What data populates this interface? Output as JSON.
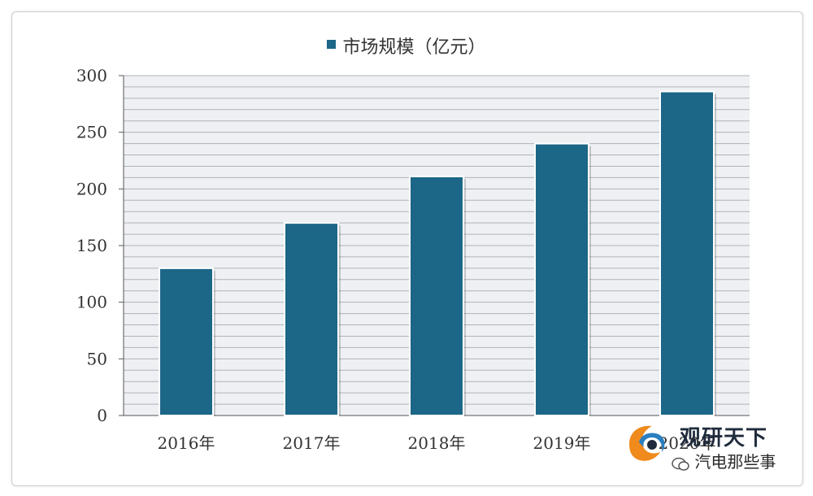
{
  "chart_data": {
    "type": "bar",
    "categories": [
      "2016年",
      "2017年",
      "2018年",
      "2019年",
      "2020年"
    ],
    "series": [
      {
        "name": "市场规模（亿元）",
        "values": [
          130,
          170,
          211,
          240,
          286
        ]
      }
    ],
    "xlabel": "",
    "ylabel": "",
    "ylim": [
      0,
      300
    ],
    "yticks": [
      0,
      50,
      100,
      150,
      200,
      250,
      300
    ],
    "grid": true,
    "legend": "top-center",
    "colors": {
      "bar": "#1c6688",
      "grid": "#aeb3ba",
      "plot_bg": "#eef0f3"
    }
  },
  "watermark": {
    "title": "观研天下",
    "subtitle": "汽电那些事"
  }
}
